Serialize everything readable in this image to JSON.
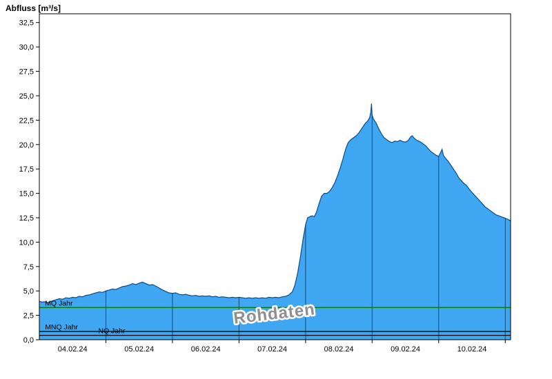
{
  "page": {
    "title": "Abfluss [m³/s]"
  },
  "chart_data": {
    "type": "area",
    "title": "Abfluss [m³/s]",
    "watermark": "Rohdaten",
    "x_axis": {
      "domain_days": [
        0,
        7.08
      ],
      "tick_labels": [
        "04.02.24",
        "05.02.24",
        "06.02.24",
        "07.02.24",
        "08.02.24",
        "09.02.24",
        "10.02.24"
      ],
      "tick_positions_days": [
        0.5,
        1.5,
        2.5,
        3.5,
        4.5,
        5.5,
        6.5
      ],
      "gridline_positions_days": [
        1,
        2,
        3,
        4,
        5,
        6,
        7
      ]
    },
    "y_axis": {
      "min": 0,
      "max": 33.4,
      "tick_values": [
        0,
        2.5,
        5,
        7.5,
        10,
        12.5,
        15,
        17.5,
        20,
        22.5,
        25,
        27.5,
        30,
        32.5
      ],
      "tick_labels": [
        "0,0",
        "2,5",
        "5,0",
        "7,5",
        "10,0",
        "12,5",
        "15,0",
        "17,5",
        "20,0",
        "22,5",
        "25,0",
        "27,5",
        "30,0",
        "32,5"
      ]
    },
    "series": {
      "name": "Abfluss",
      "unit": "m³/s",
      "points": [
        [
          0,
          3.95
        ],
        [
          0.04,
          3.85
        ],
        [
          0.08,
          3.9
        ],
        [
          0.12,
          3.8
        ],
        [
          0.16,
          3.9
        ],
        [
          0.2,
          4.0
        ],
        [
          0.25,
          4.1
        ],
        [
          0.3,
          4.2
        ],
        [
          0.35,
          4.15
        ],
        [
          0.4,
          4.3
        ],
        [
          0.45,
          4.25
        ],
        [
          0.5,
          4.35
        ],
        [
          0.55,
          4.3
        ],
        [
          0.6,
          4.45
        ],
        [
          0.65,
          4.4
        ],
        [
          0.7,
          4.55
        ],
        [
          0.75,
          4.6
        ],
        [
          0.8,
          4.7
        ],
        [
          0.85,
          4.8
        ],
        [
          0.9,
          4.9
        ],
        [
          0.95,
          4.85
        ],
        [
          1.0,
          5.0
        ],
        [
          1.05,
          5.1
        ],
        [
          1.1,
          5.2
        ],
        [
          1.15,
          5.15
        ],
        [
          1.2,
          5.3
        ],
        [
          1.25,
          5.45
        ],
        [
          1.3,
          5.5
        ],
        [
          1.35,
          5.6
        ],
        [
          1.4,
          5.75
        ],
        [
          1.45,
          5.65
        ],
        [
          1.5,
          5.8
        ],
        [
          1.55,
          5.9
        ],
        [
          1.6,
          5.75
        ],
        [
          1.65,
          5.6
        ],
        [
          1.7,
          5.65
        ],
        [
          1.75,
          5.5
        ],
        [
          1.8,
          5.3
        ],
        [
          1.85,
          5.1
        ],
        [
          1.9,
          4.95
        ],
        [
          1.95,
          4.8
        ],
        [
          2.0,
          4.75
        ],
        [
          2.05,
          4.8
        ],
        [
          2.1,
          4.65
        ],
        [
          2.15,
          4.6
        ],
        [
          2.2,
          4.65
        ],
        [
          2.25,
          4.55
        ],
        [
          2.3,
          4.5
        ],
        [
          2.35,
          4.55
        ],
        [
          2.4,
          4.45
        ],
        [
          2.45,
          4.5
        ],
        [
          2.5,
          4.45
        ],
        [
          2.55,
          4.5
        ],
        [
          2.6,
          4.4
        ],
        [
          2.65,
          4.45
        ],
        [
          2.7,
          4.35
        ],
        [
          2.75,
          4.4
        ],
        [
          2.8,
          4.35
        ],
        [
          2.85,
          4.3
        ],
        [
          2.9,
          4.35
        ],
        [
          2.95,
          4.3
        ],
        [
          3.0,
          4.35
        ],
        [
          3.05,
          4.3
        ],
        [
          3.1,
          4.25
        ],
        [
          3.15,
          4.3
        ],
        [
          3.2,
          4.25
        ],
        [
          3.25,
          4.3
        ],
        [
          3.3,
          4.25
        ],
        [
          3.35,
          4.3
        ],
        [
          3.4,
          4.25
        ],
        [
          3.45,
          4.35
        ],
        [
          3.5,
          4.3
        ],
        [
          3.55,
          4.35
        ],
        [
          3.6,
          4.3
        ],
        [
          3.65,
          4.4
        ],
        [
          3.7,
          4.45
        ],
        [
          3.75,
          4.6
        ],
        [
          3.8,
          4.9
        ],
        [
          3.84,
          5.6
        ],
        [
          3.88,
          6.8
        ],
        [
          3.92,
          8.4
        ],
        [
          3.96,
          10.2
        ],
        [
          4.0,
          11.8
        ],
        [
          4.03,
          12.5
        ],
        [
          4.06,
          12.6
        ],
        [
          4.1,
          12.7
        ],
        [
          4.13,
          12.6
        ],
        [
          4.16,
          13.0
        ],
        [
          4.2,
          13.9
        ],
        [
          4.24,
          14.7
        ],
        [
          4.28,
          15.0
        ],
        [
          4.32,
          15.0
        ],
        [
          4.36,
          15.2
        ],
        [
          4.4,
          15.6
        ],
        [
          4.44,
          16.1
        ],
        [
          4.48,
          16.8
        ],
        [
          4.52,
          17.6
        ],
        [
          4.56,
          18.5
        ],
        [
          4.6,
          19.5
        ],
        [
          4.64,
          20.2
        ],
        [
          4.68,
          20.5
        ],
        [
          4.72,
          20.7
        ],
        [
          4.76,
          20.9
        ],
        [
          4.8,
          21.2
        ],
        [
          4.84,
          21.6
        ],
        [
          4.88,
          22.0
        ],
        [
          4.9,
          22.2
        ],
        [
          4.93,
          22.4
        ],
        [
          4.96,
          22.7
        ],
        [
          4.98,
          23.3
        ],
        [
          4.99,
          24.2
        ],
        [
          5.0,
          23.0
        ],
        [
          5.02,
          22.6
        ],
        [
          5.06,
          22.2
        ],
        [
          5.1,
          21.6
        ],
        [
          5.14,
          21.1
        ],
        [
          5.18,
          20.7
        ],
        [
          5.22,
          20.5
        ],
        [
          5.26,
          20.3
        ],
        [
          5.3,
          20.2
        ],
        [
          5.34,
          20.35
        ],
        [
          5.38,
          20.3
        ],
        [
          5.42,
          20.45
        ],
        [
          5.46,
          20.3
        ],
        [
          5.5,
          20.25
        ],
        [
          5.54,
          20.4
        ],
        [
          5.58,
          20.8
        ],
        [
          5.6,
          20.9
        ],
        [
          5.64,
          20.6
        ],
        [
          5.68,
          20.4
        ],
        [
          5.72,
          20.3
        ],
        [
          5.76,
          20.1
        ],
        [
          5.8,
          19.9
        ],
        [
          5.84,
          19.6
        ],
        [
          5.88,
          19.3
        ],
        [
          5.92,
          19.1
        ],
        [
          5.96,
          18.9
        ],
        [
          6.0,
          18.8
        ],
        [
          6.03,
          19.2
        ],
        [
          6.05,
          19.5
        ],
        [
          6.07,
          18.9
        ],
        [
          6.1,
          18.6
        ],
        [
          6.14,
          18.3
        ],
        [
          6.18,
          17.9
        ],
        [
          6.22,
          17.5
        ],
        [
          6.26,
          17.1
        ],
        [
          6.3,
          16.6
        ],
        [
          6.34,
          16.3
        ],
        [
          6.38,
          16.0
        ],
        [
          6.42,
          15.8
        ],
        [
          6.46,
          15.4
        ],
        [
          6.5,
          15.1
        ],
        [
          6.54,
          14.8
        ],
        [
          6.58,
          14.5
        ],
        [
          6.62,
          14.2
        ],
        [
          6.66,
          13.9
        ],
        [
          6.7,
          13.6
        ],
        [
          6.74,
          13.4
        ],
        [
          6.78,
          13.2
        ],
        [
          6.82,
          13.0
        ],
        [
          6.86,
          12.8
        ],
        [
          6.9,
          12.7
        ],
        [
          6.94,
          12.6
        ],
        [
          6.98,
          12.5
        ],
        [
          7.02,
          12.4
        ],
        [
          7.08,
          12.2
        ]
      ]
    },
    "reference_lines": [
      {
        "label": "MQ Jahr",
        "value": 3.3,
        "color": "#007a00",
        "label_x_frac": 0.012
      },
      {
        "label": "MNQ Jahr",
        "value": 0.85,
        "color": "#000000",
        "label_x_frac": 0.012
      },
      {
        "label": "NQ Jahr",
        "value": 0.45,
        "color": "#000000",
        "label_x_frac": 0.125
      }
    ],
    "colors": {
      "fill": "#3fa6f2",
      "outline": "#0a4a8a",
      "gridline": "#12395e",
      "watermark": "#8f8f8f",
      "axis": "#000000"
    }
  }
}
